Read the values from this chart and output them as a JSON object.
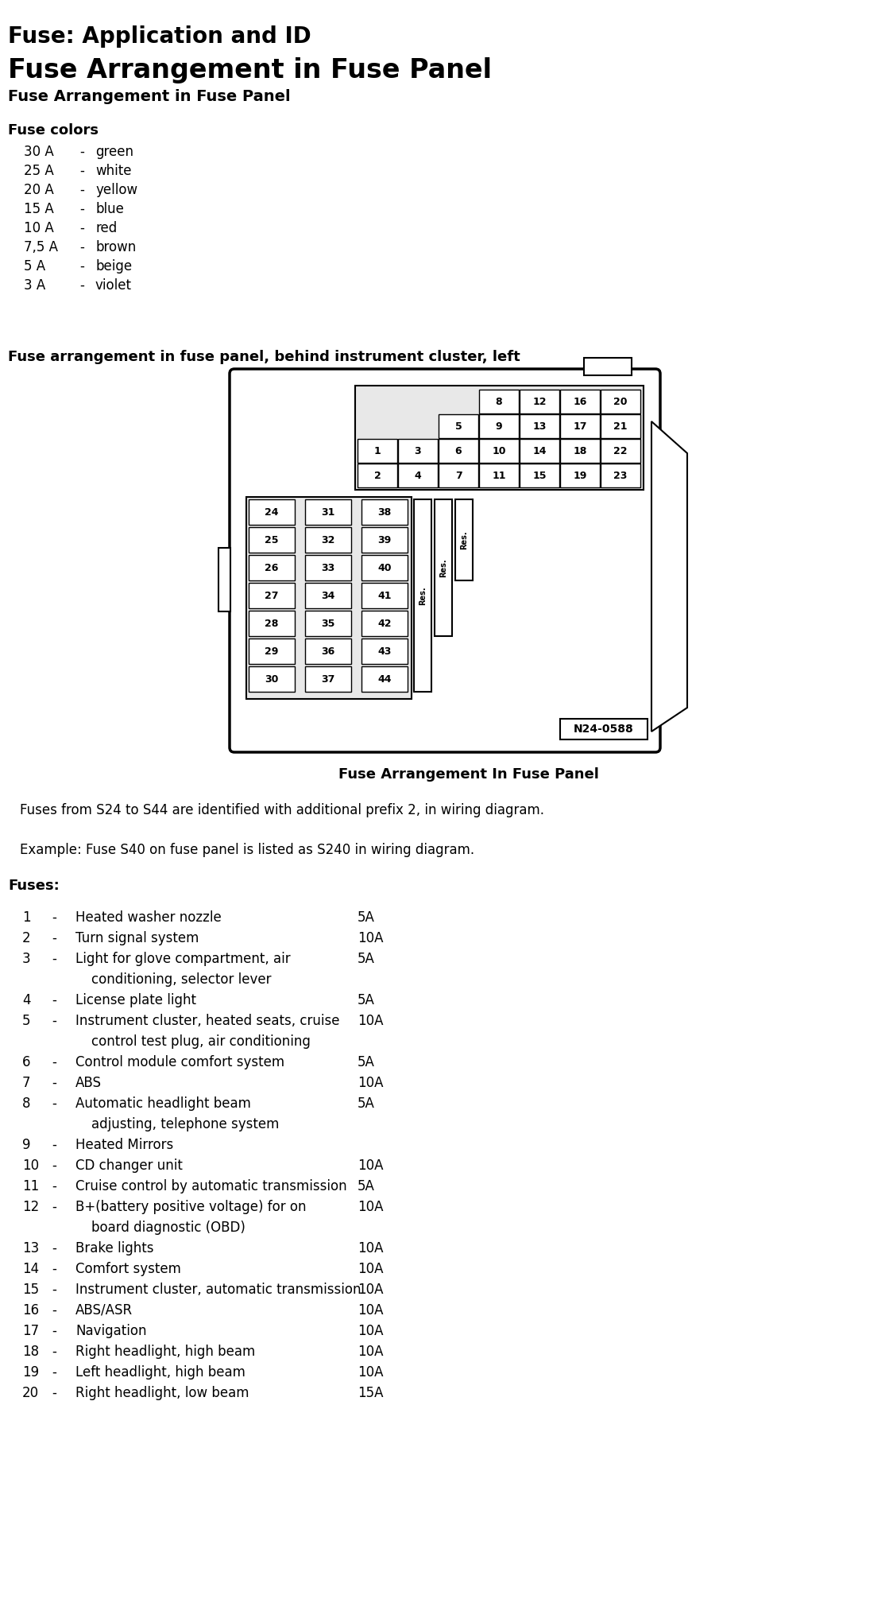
{
  "title1": "Fuse: Application and ID",
  "title2": "Fuse Arrangement in Fuse Panel",
  "title3": "Fuse Arrangement in Fuse Panel",
  "fuse_colors_title": "Fuse colors",
  "fuse_colors": [
    [
      "30 A",
      "-",
      "green"
    ],
    [
      "25 A",
      "-",
      "white"
    ],
    [
      "20 A",
      "-",
      "yellow"
    ],
    [
      "15 A",
      "-",
      "blue"
    ],
    [
      "10 A",
      "-",
      "red"
    ],
    [
      "7,5 A",
      "-",
      "brown"
    ],
    [
      "5 A",
      "-",
      "beige"
    ],
    [
      "3 A",
      "-",
      "violet"
    ]
  ],
  "diagram_label": "Fuse arrangement in fuse panel, behind instrument cluster, left",
  "diagram_caption": "Fuse Arrangement In Fuse Panel",
  "note1": "Fuses from S24 to S44 are identified with additional prefix 2, in wiring diagram.",
  "note2": "Example: Fuse S40 on fuse panel is listed as S240 in wiring diagram.",
  "fuses_title": "Fuses:",
  "fuses": [
    {
      "num": "1",
      "desc": "Heated washer nozzle",
      "desc2": "",
      "amp": "5A"
    },
    {
      "num": "2",
      "desc": "Turn signal system",
      "desc2": "",
      "amp": "10A"
    },
    {
      "num": "3",
      "desc": "Light for glove compartment, air",
      "desc2": "conditioning, selector lever",
      "amp": "5A"
    },
    {
      "num": "4",
      "desc": "License plate light",
      "desc2": "",
      "amp": "5A"
    },
    {
      "num": "5",
      "desc": "Instrument cluster, heated seats, cruise",
      "desc2": "control test plug, air conditioning",
      "amp": "10A"
    },
    {
      "num": "6",
      "desc": "Control module comfort system",
      "desc2": "",
      "amp": "5A"
    },
    {
      "num": "7",
      "desc": "ABS",
      "desc2": "",
      "amp": "10A"
    },
    {
      "num": "8",
      "desc": "Automatic headlight beam",
      "desc2": "adjusting, telephone system",
      "amp": "5A"
    },
    {
      "num": "9",
      "desc": "Heated Mirrors",
      "desc2": "",
      "amp": ""
    },
    {
      "num": "10",
      "desc": "CD changer unit",
      "desc2": "",
      "amp": "10A"
    },
    {
      "num": "11",
      "desc": "Cruise control by automatic transmission",
      "desc2": "",
      "amp": "5A"
    },
    {
      "num": "12",
      "desc": "B+(battery positive voltage) for on",
      "desc2": "board diagnostic (OBD)",
      "amp": "10A"
    },
    {
      "num": "13",
      "desc": "Brake lights",
      "desc2": "",
      "amp": "10A"
    },
    {
      "num": "14",
      "desc": "Comfort system",
      "desc2": "",
      "amp": "10A"
    },
    {
      "num": "15",
      "desc": "Instrument cluster, automatic transmission",
      "desc2": "",
      "amp": "10A"
    },
    {
      "num": "16",
      "desc": "ABS/ASR",
      "desc2": "",
      "amp": "10A"
    },
    {
      "num": "17",
      "desc": "Navigation",
      "desc2": "",
      "amp": "10A"
    },
    {
      "num": "18",
      "desc": "Right headlight, high beam",
      "desc2": "",
      "amp": "10A"
    },
    {
      "num": "19",
      "desc": "Left headlight, high beam",
      "desc2": "",
      "amp": "10A"
    },
    {
      "num": "20",
      "desc": "Right headlight, low beam",
      "desc2": "",
      "amp": "15A"
    }
  ],
  "bg_color": "#ffffff"
}
